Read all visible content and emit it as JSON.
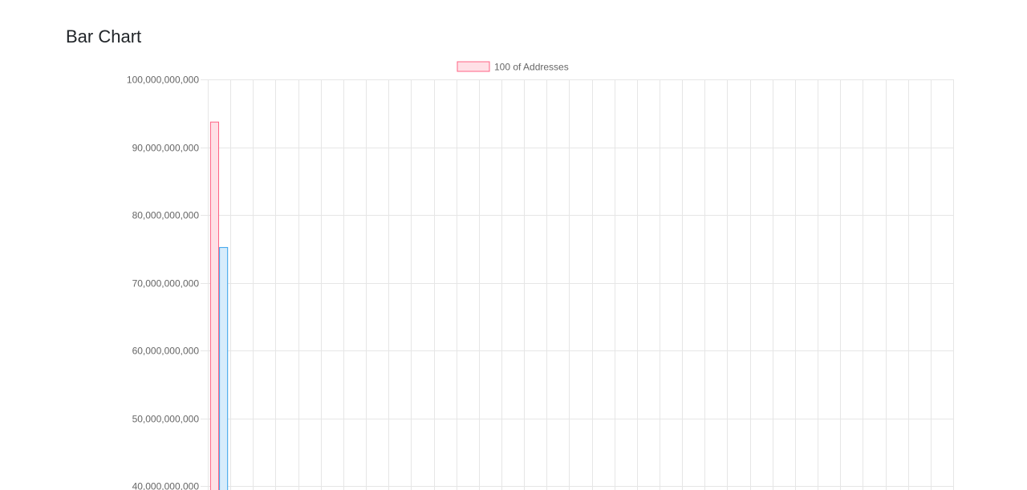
{
  "page": {
    "title": "Bar Chart"
  },
  "chart_data": {
    "type": "bar",
    "legend": {
      "label": "100 of Addresses",
      "placement": "top-center",
      "color": "#ff6384",
      "fill": "#ffe0e6"
    },
    "ylim": [
      40000000000,
      100000000000
    ],
    "y_ticks": [
      {
        "value": 100000000000,
        "label": "100,000,000,000"
      },
      {
        "value": 90000000000,
        "label": "90,000,000,000"
      },
      {
        "value": 80000000000,
        "label": "80,000,000,000"
      },
      {
        "value": 70000000000,
        "label": "70,000,000,000"
      },
      {
        "value": 60000000000,
        "label": "60,000,000,000"
      },
      {
        "value": 50000000000,
        "label": "50,000,000,000"
      },
      {
        "value": 40000000000,
        "label": "40,000,000,000"
      }
    ],
    "category_count": 33,
    "bars": [
      {
        "category_index": 0,
        "value": 93700000000,
        "border": "#ff6384",
        "fill": "#ffe0e6"
      },
      {
        "category_index": 0,
        "value": 75200000000,
        "border": "#36a2eb",
        "fill": "#d7ecfb"
      }
    ],
    "grid": true
  }
}
